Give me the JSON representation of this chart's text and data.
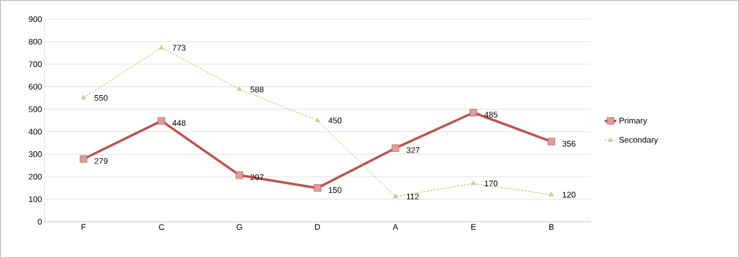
{
  "chart_data": {
    "type": "line",
    "categories": [
      "F",
      "C",
      "G",
      "D",
      "A",
      "E",
      "B"
    ],
    "series": [
      {
        "name": "Primary",
        "color": "#c0504d",
        "marker": "square",
        "line_style": "solid",
        "values": [
          279,
          448,
          207,
          150,
          327,
          485,
          356
        ]
      },
      {
        "name": "Secondary",
        "color": "#9bbb59",
        "marker": "triangle",
        "line_style": "dashed",
        "values": [
          550,
          773,
          588,
          450,
          112,
          170,
          120
        ]
      }
    ],
    "ylim": [
      0,
      900
    ],
    "yticks": [
      0,
      100,
      200,
      300,
      400,
      500,
      600,
      700,
      800,
      900
    ],
    "grid": "y",
    "legend": "right",
    "data_labels": true
  }
}
